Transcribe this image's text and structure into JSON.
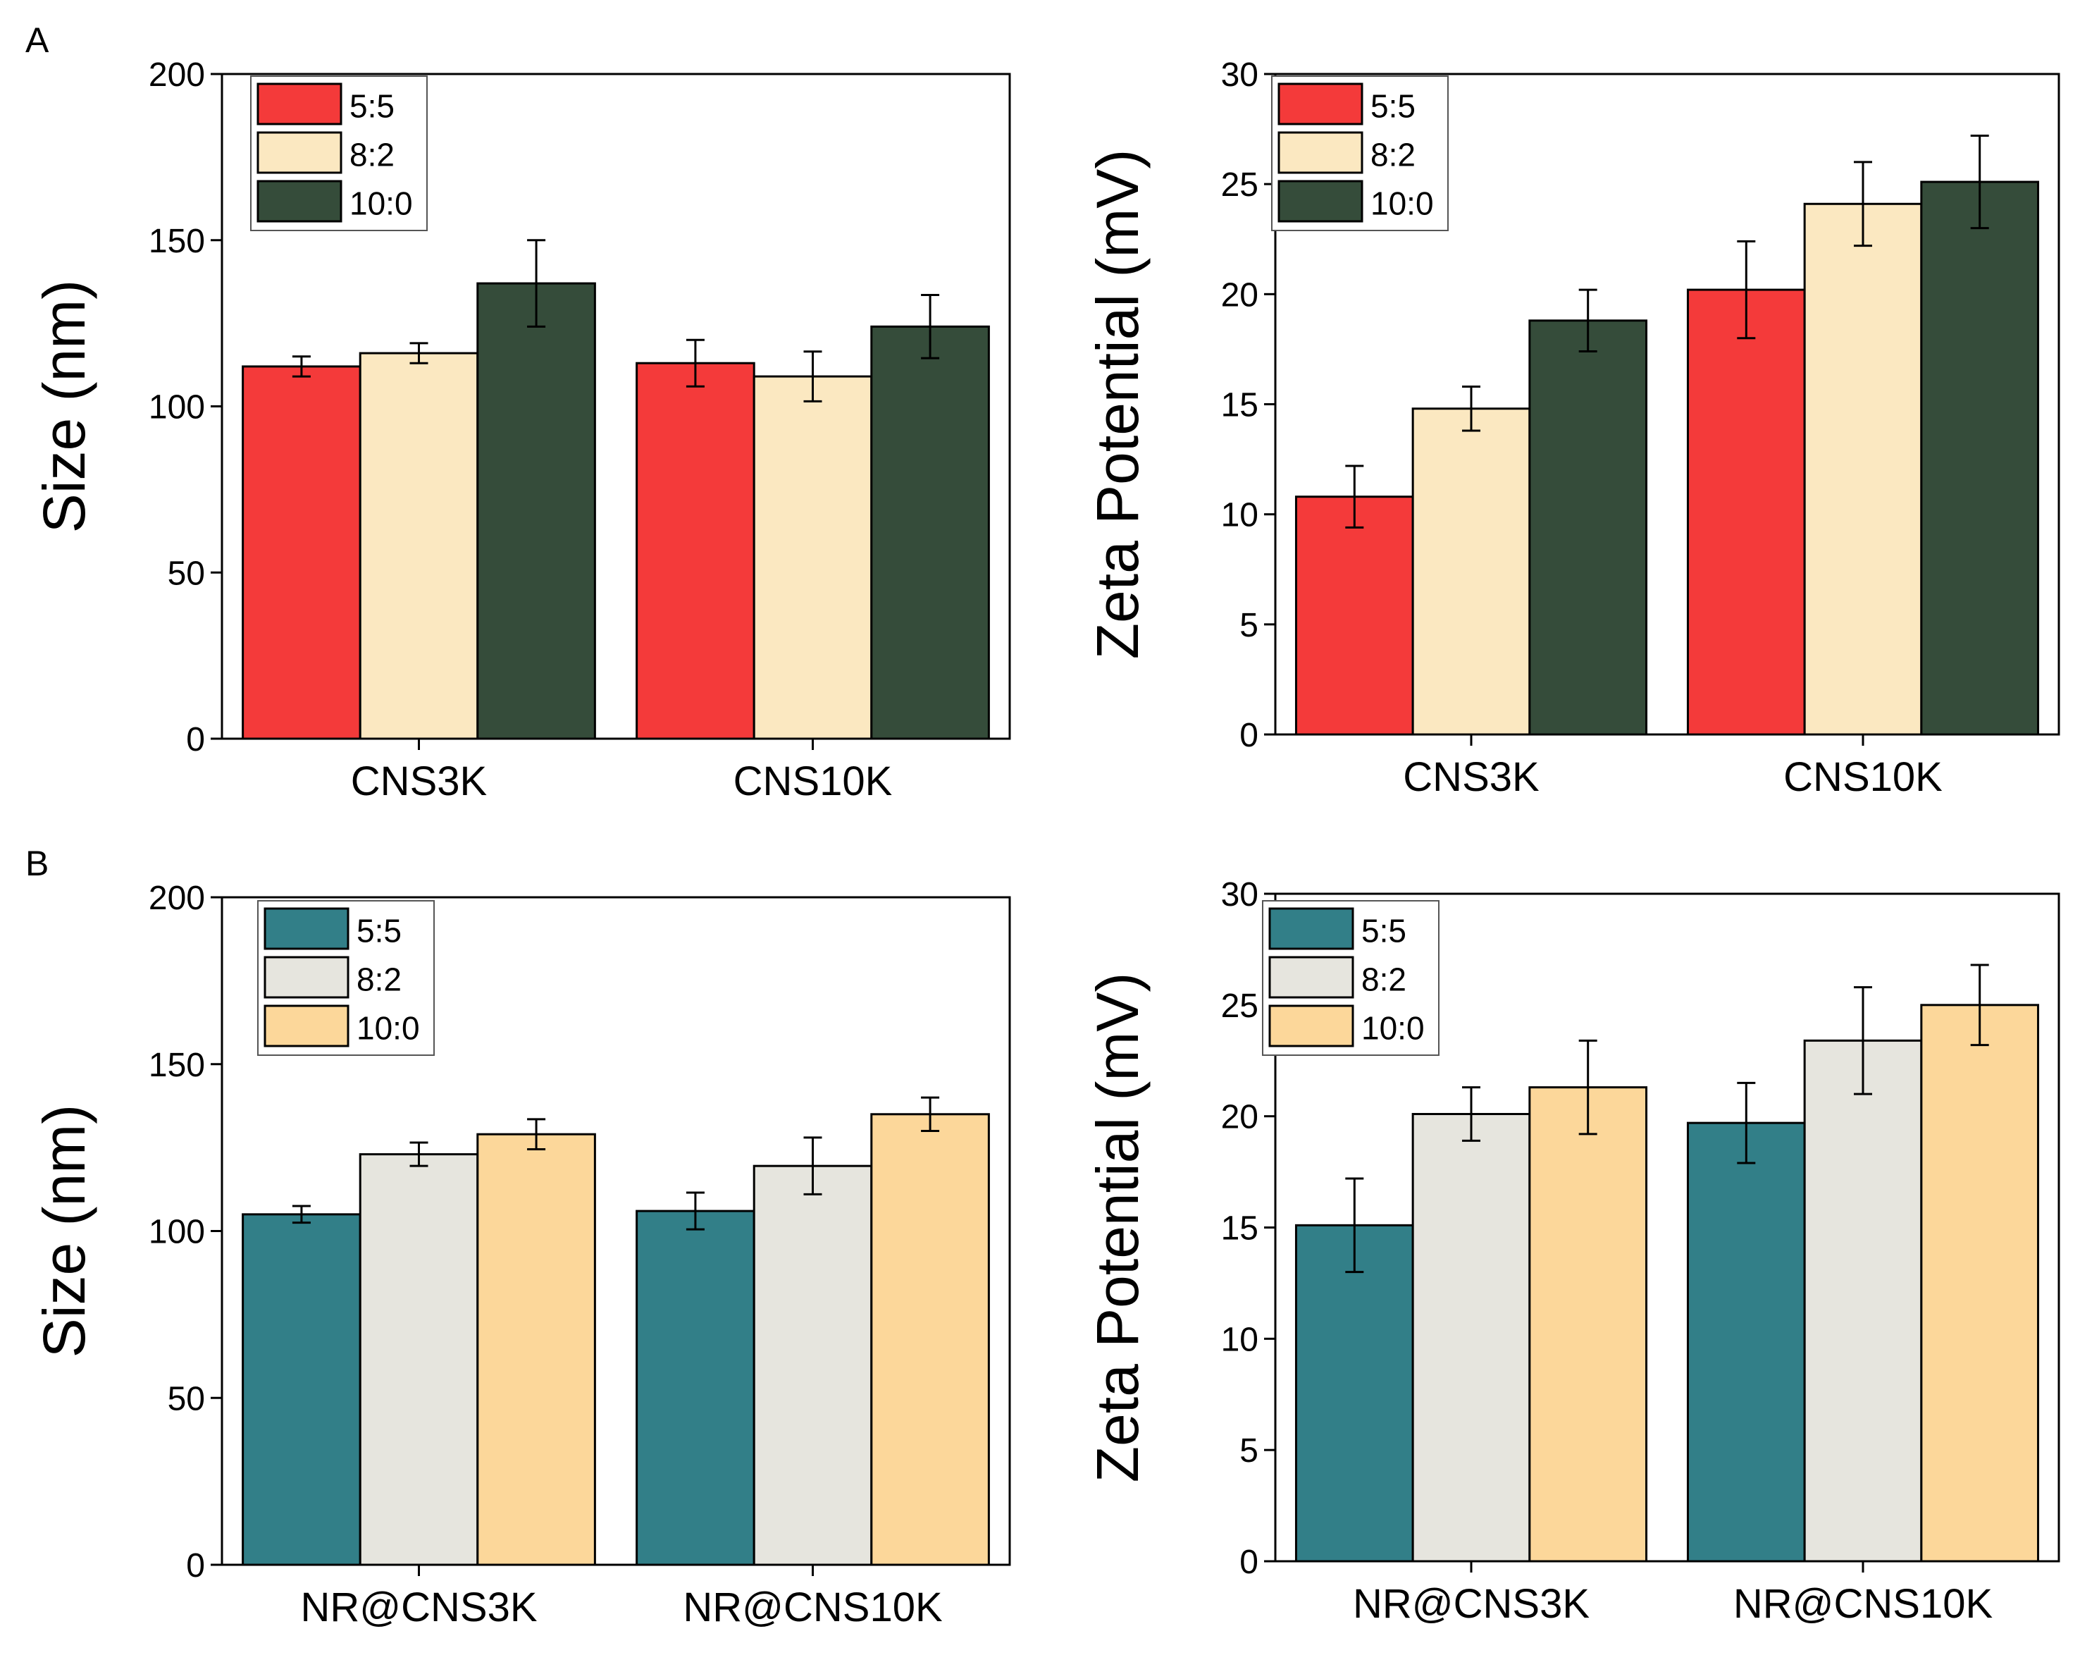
{
  "figure": {
    "panels": [
      {
        "label": "A"
      },
      {
        "label": "B"
      }
    ]
  },
  "chart_data": [
    {
      "type": "bar",
      "panel": "A",
      "title": "",
      "xlabel": "",
      "ylabel": "Size (nm)",
      "ylim": [
        0,
        200
      ],
      "yticks": [
        0,
        50,
        100,
        150,
        200
      ],
      "categories": [
        "CNS3K",
        "CNS10K"
      ],
      "legend_position": "top-left",
      "series": [
        {
          "name": "5:5",
          "color": "#f43a3a",
          "values": [
            112,
            113
          ],
          "errors": [
            3,
            7
          ]
        },
        {
          "name": "8:2",
          "color": "#fbe8c1",
          "values": [
            116,
            109
          ],
          "errors": [
            3,
            7.5
          ]
        },
        {
          "name": "10:0",
          "color": "#354c3a",
          "values": [
            137,
            124
          ],
          "errors": [
            13,
            9.5
          ]
        }
      ]
    },
    {
      "type": "bar",
      "panel": "A",
      "title": "",
      "xlabel": "",
      "ylabel": "Zeta Potential (mV)",
      "ylim": [
        0,
        30
      ],
      "yticks": [
        0,
        5,
        10,
        15,
        20,
        25,
        30
      ],
      "categories": [
        "CNS3K",
        "CNS10K"
      ],
      "legend_position": "top-left",
      "series": [
        {
          "name": "5:5",
          "color": "#f43a3a",
          "values": [
            10.8,
            20.2
          ],
          "errors": [
            1.4,
            2.2
          ]
        },
        {
          "name": "8:2",
          "color": "#fbe8c1",
          "values": [
            14.8,
            24.1
          ],
          "errors": [
            1.0,
            1.9
          ]
        },
        {
          "name": "10:0",
          "color": "#354c3a",
          "values": [
            18.8,
            25.1
          ],
          "errors": [
            1.4,
            2.1
          ]
        }
      ]
    },
    {
      "type": "bar",
      "panel": "B",
      "title": "",
      "xlabel": "",
      "ylabel": "Size (nm)",
      "ylim": [
        0,
        200
      ],
      "yticks": [
        0,
        50,
        100,
        150,
        200
      ],
      "categories": [
        "NR@CNS3K",
        "NR@CNS10K"
      ],
      "legend_position": "top-left",
      "series": [
        {
          "name": "5:5",
          "color": "#327f88",
          "values": [
            105,
            106
          ],
          "errors": [
            2.5,
            5.5
          ]
        },
        {
          "name": "8:2",
          "color": "#e6e5de",
          "values": [
            123,
            119.5
          ],
          "errors": [
            3.5,
            8.5
          ]
        },
        {
          "name": "10:0",
          "color": "#fcd79a",
          "values": [
            129,
            135
          ],
          "errors": [
            4.5,
            5.0
          ]
        }
      ]
    },
    {
      "type": "bar",
      "panel": "B",
      "title": "",
      "xlabel": "",
      "ylabel": "Zeta Potential (mV)",
      "ylim": [
        0,
        30
      ],
      "yticks": [
        0,
        5,
        10,
        15,
        20,
        25,
        30
      ],
      "categories": [
        "NR@CNS3K",
        "NR@CNS10K"
      ],
      "legend_position": "top-left",
      "series": [
        {
          "name": "5:5",
          "color": "#327f88",
          "values": [
            15.1,
            19.7
          ],
          "errors": [
            2.1,
            1.8
          ]
        },
        {
          "name": "8:2",
          "color": "#e6e5de",
          "values": [
            20.1,
            23.4
          ],
          "errors": [
            1.2,
            2.4
          ]
        },
        {
          "name": "10:0",
          "color": "#fcd79a",
          "values": [
            21.3,
            25.0
          ],
          "errors": [
            2.1,
            1.8
          ]
        }
      ]
    }
  ]
}
